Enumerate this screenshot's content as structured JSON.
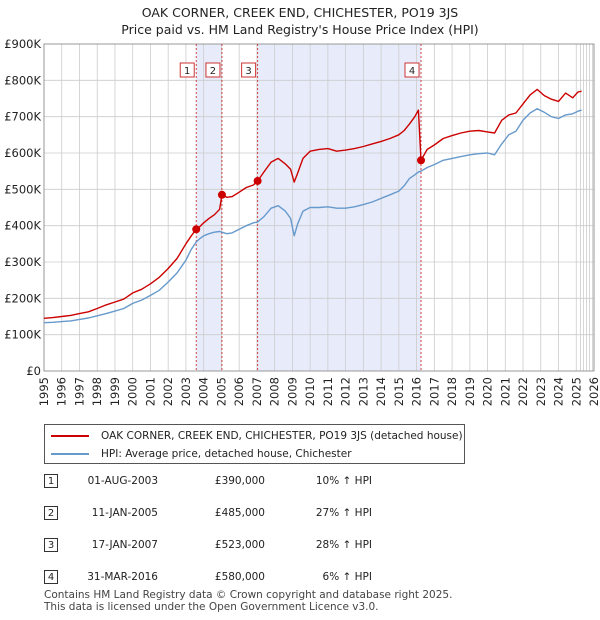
{
  "title": [
    "OAK CORNER, CREEK END, CHICHESTER, PO19 3JS",
    "Price paid vs. HM Land Registry's House Price Index (HPI)"
  ],
  "colors": {
    "property": "#cc0000",
    "hpi": "#6699cc",
    "marker": "#cc0000",
    "shade": "#e8ecfa",
    "vline": "#cc3333",
    "grid": "#cccccc"
  },
  "chart_data": {
    "type": "line",
    "title": "OAK CORNER, CREEK END, CHICHESTER, PO19 3JS — Price paid vs. HM Land Registry's House Price Index (HPI)",
    "xlabel": "",
    "ylabel": "",
    "xlim": [
      1995,
      2026
    ],
    "ylim": [
      0,
      900000
    ],
    "yticks": [
      0,
      100000,
      200000,
      300000,
      400000,
      500000,
      600000,
      700000,
      800000,
      900000
    ],
    "ytick_labels": [
      "£0",
      "£100K",
      "£200K",
      "£300K",
      "£400K",
      "£500K",
      "£600K",
      "£700K",
      "£800K",
      "£900K"
    ],
    "xticks": [
      1995,
      1996,
      1997,
      1998,
      1999,
      2000,
      2001,
      2002,
      2003,
      2004,
      2005,
      2006,
      2007,
      2008,
      2009,
      2010,
      2011,
      2012,
      2013,
      2014,
      2015,
      2016,
      2017,
      2018,
      2019,
      2020,
      2021,
      2022,
      2023,
      2024,
      2025,
      2026
    ],
    "shaded_regions": [
      [
        2003.58,
        2005.03
      ],
      [
        2007.04,
        2016.25
      ]
    ],
    "projection_start": 2025.25,
    "series": [
      {
        "name": "OAK CORNER, CREEK END, CHICHESTER, PO19 3JS (detached house)",
        "color": "#cc0000",
        "x": [
          1995,
          1995.5,
          1996,
          1996.5,
          1997,
          1997.5,
          1998,
          1998.5,
          1999,
          1999.5,
          2000,
          2000.5,
          2001,
          2001.5,
          2002,
          2002.5,
          2003,
          2003.3,
          2003.58,
          2003.8,
          2004,
          2004.3,
          2004.6,
          2004.9,
          2005.03,
          2005.3,
          2005.6,
          2006,
          2006.4,
          2006.8,
          2007.04,
          2007.4,
          2007.8,
          2008.2,
          2008.6,
          2008.9,
          2009.1,
          2009.3,
          2009.6,
          2010,
          2010.5,
          2011,
          2011.5,
          2012,
          2012.5,
          2013,
          2013.5,
          2014,
          2014.5,
          2015,
          2015.3,
          2015.6,
          2015.9,
          2016.1,
          2016.25,
          2016.6,
          2017,
          2017.5,
          2018,
          2018.5,
          2019,
          2019.5,
          2020,
          2020.4,
          2020.8,
          2021.2,
          2021.6,
          2022,
          2022.4,
          2022.8,
          2023.2,
          2023.6,
          2024,
          2024.4,
          2024.8,
          2025.1,
          2025.3
        ],
        "y": [
          145000,
          147000,
          150000,
          153000,
          158000,
          163000,
          172000,
          182000,
          190000,
          198000,
          215000,
          225000,
          240000,
          258000,
          282000,
          310000,
          350000,
          372000,
          390000,
          398000,
          408000,
          420000,
          430000,
          445000,
          485000,
          478000,
          480000,
          492000,
          505000,
          512000,
          523000,
          548000,
          575000,
          585000,
          570000,
          555000,
          520000,
          545000,
          585000,
          605000,
          610000,
          612000,
          605000,
          608000,
          612000,
          618000,
          625000,
          632000,
          640000,
          650000,
          662000,
          680000,
          700000,
          718000,
          580000,
          610000,
          622000,
          640000,
          648000,
          655000,
          660000,
          662000,
          658000,
          655000,
          690000,
          705000,
          710000,
          735000,
          760000,
          775000,
          758000,
          748000,
          742000,
          765000,
          752000,
          768000,
          770000
        ]
      },
      {
        "name": "HPI: Average price, detached house, Chichester",
        "color": "#6699cc",
        "x": [
          1995,
          1995.5,
          1996,
          1996.5,
          1997,
          1997.5,
          1998,
          1998.5,
          1999,
          1999.5,
          2000,
          2000.5,
          2001,
          2001.5,
          2002,
          2002.5,
          2003,
          2003.3,
          2003.58,
          2003.8,
          2004,
          2004.3,
          2004.6,
          2004.9,
          2005.03,
          2005.3,
          2005.6,
          2006,
          2006.4,
          2006.8,
          2007.04,
          2007.4,
          2007.8,
          2008.2,
          2008.6,
          2008.9,
          2009.1,
          2009.3,
          2009.6,
          2010,
          2010.5,
          2011,
          2011.5,
          2012,
          2012.5,
          2013,
          2013.5,
          2014,
          2014.5,
          2015,
          2015.3,
          2015.6,
          2015.9,
          2016.1,
          2016.25,
          2016.6,
          2017,
          2017.5,
          2018,
          2018.5,
          2019,
          2019.5,
          2020,
          2020.4,
          2020.8,
          2021.2,
          2021.6,
          2022,
          2022.4,
          2022.8,
          2023.2,
          2023.6,
          2024,
          2024.4,
          2024.8,
          2025.1,
          2025.3
        ],
        "y": [
          133000,
          134000,
          136000,
          138000,
          142000,
          146000,
          152000,
          158000,
          165000,
          172000,
          186000,
          195000,
          208000,
          222000,
          245000,
          270000,
          305000,
          335000,
          355000,
          365000,
          372000,
          378000,
          382000,
          384000,
          382000,
          378000,
          380000,
          390000,
          400000,
          408000,
          410000,
          425000,
          448000,
          455000,
          440000,
          420000,
          372000,
          405000,
          440000,
          450000,
          450000,
          452000,
          448000,
          448000,
          452000,
          458000,
          465000,
          475000,
          485000,
          495000,
          510000,
          530000,
          540000,
          548000,
          550000,
          560000,
          568000,
          580000,
          585000,
          590000,
          595000,
          598000,
          600000,
          595000,
          625000,
          650000,
          660000,
          690000,
          710000,
          722000,
          712000,
          700000,
          695000,
          705000,
          708000,
          715000,
          718000
        ]
      }
    ],
    "sales": [
      {
        "label": "1",
        "x": 2003.58,
        "price": 390000
      },
      {
        "label": "2",
        "x": 2005.03,
        "price": 485000
      },
      {
        "label": "3",
        "x": 2007.04,
        "price": 523000
      },
      {
        "label": "4",
        "x": 2016.25,
        "price": 580000
      }
    ]
  },
  "legend": {
    "property": "OAK CORNER, CREEK END, CHICHESTER, PO19 3JS (detached house)",
    "hpi": "HPI: Average price, detached house, Chichester"
  },
  "sales_table": [
    {
      "num": "1",
      "date": "01-AUG-2003",
      "price": "£390,000",
      "hpi": "10% ↑ HPI"
    },
    {
      "num": "2",
      "date": "11-JAN-2005",
      "price": "£485,000",
      "hpi": "27% ↑ HPI"
    },
    {
      "num": "3",
      "date": "17-JAN-2007",
      "price": "£523,000",
      "hpi": "28% ↑ HPI"
    },
    {
      "num": "4",
      "date": "31-MAR-2016",
      "price": "£580,000",
      "hpi": "6% ↑ HPI"
    }
  ],
  "footer": [
    "Contains HM Land Registry data © Crown copyright and database right 2025.",
    "This data is licensed under the Open Government Licence v3.0."
  ]
}
